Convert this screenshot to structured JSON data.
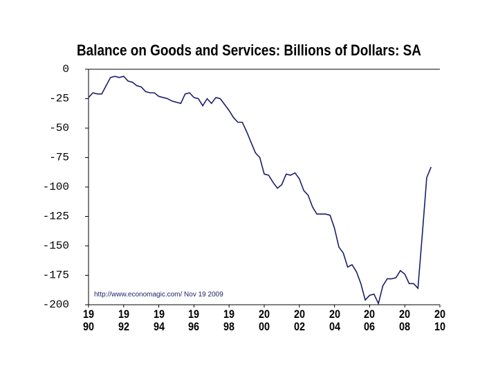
{
  "chart_data": {
    "type": "line",
    "title": "Balance on Goods and Services: Billions of Dollars: SA",
    "annotation": "http://www.economagic.com/  Nov 19 2009",
    "x": [
      1990,
      1990.25,
      1990.5,
      1990.75,
      1991,
      1991.25,
      1991.5,
      1991.75,
      1992,
      1992.25,
      1992.5,
      1992.75,
      1993,
      1993.25,
      1993.5,
      1993.75,
      1994,
      1994.25,
      1994.5,
      1994.75,
      1995,
      1995.25,
      1995.5,
      1995.75,
      1996,
      1996.25,
      1996.5,
      1996.75,
      1997,
      1997.25,
      1997.5,
      1997.75,
      1998,
      1998.25,
      1998.5,
      1998.75,
      1999,
      1999.25,
      1999.5,
      1999.75,
      2000,
      2000.25,
      2000.5,
      2000.75,
      2001,
      2001.25,
      2001.5,
      2001.75,
      2002,
      2002.25,
      2002.5,
      2002.75,
      2003,
      2003.25,
      2003.5,
      2003.75,
      2004,
      2004.25,
      2004.5,
      2004.75,
      2005,
      2005.25,
      2005.5,
      2005.75,
      2006,
      2006.25,
      2006.5,
      2006.75,
      2007,
      2007.25,
      2007.5,
      2007.75,
      2008,
      2008.25,
      2008.5,
      2008.75,
      2009,
      2009.25,
      2009.5
    ],
    "series": [
      {
        "name": "Balance on Goods and Services",
        "color": "#1c1c6b",
        "values": [
          -24,
          -20,
          -21,
          -21,
          -14,
          -7,
          -6,
          -7,
          -6,
          -10,
          -11,
          -14,
          -15,
          -19,
          -20,
          -20,
          -23,
          -24,
          -25,
          -27,
          -28,
          -29,
          -21,
          -20,
          -24,
          -25,
          -31,
          -25,
          -29,
          -24,
          -25,
          -30,
          -35,
          -41,
          -45,
          -45,
          -53,
          -62,
          -71,
          -75,
          -89,
          -90,
          -96,
          -101,
          -98,
          -89,
          -90,
          -88,
          -93,
          -103,
          -107,
          -117,
          -123,
          -123,
          -123,
          -124,
          -135,
          -151,
          -156,
          -168,
          -166,
          -172,
          -182,
          -196,
          -192,
          -191,
          -199,
          -184,
          -178,
          -178,
          -177,
          -171,
          -174,
          -182,
          -182,
          -186,
          -140,
          -92,
          -83
        ]
      }
    ],
    "xlim": [
      1990,
      2010
    ],
    "xticks": [
      1990,
      1992,
      1994,
      1996,
      1998,
      2000,
      2002,
      2004,
      2006,
      2008,
      2010
    ],
    "ylim": [
      -200,
      0
    ],
    "yticks": [
      0,
      -25,
      -50,
      -75,
      -100,
      -125,
      -150,
      -175,
      -200
    ]
  }
}
